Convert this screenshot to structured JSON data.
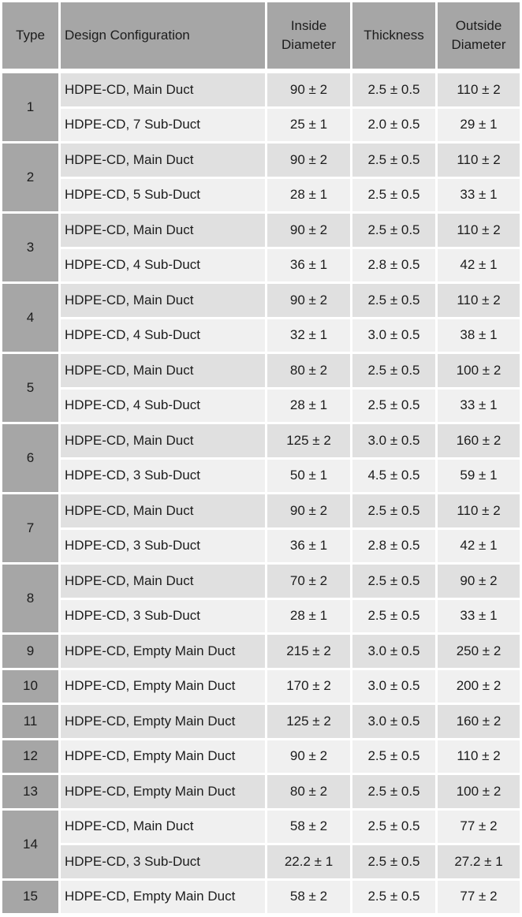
{
  "colors": {
    "header_bg": "#a6a6a6",
    "type_bg": "#a6a6a6",
    "row_dark": "#e0e0e0",
    "row_light": "#f0f0f0"
  },
  "headers": [
    "Type",
    "Design Configuration",
    "Inside Diameter",
    "Thickness",
    "Outside Diameter"
  ],
  "groups": [
    {
      "type": "1",
      "rows": [
        [
          "HDPE-CD, Main Duct",
          "90 ± 2",
          "2.5 ± 0.5",
          "110 ± 2"
        ],
        [
          "HDPE-CD, 7 Sub-Duct",
          "25 ± 1",
          "2.0 ± 0.5",
          "29 ± 1"
        ]
      ]
    },
    {
      "type": "2",
      "rows": [
        [
          "HDPE-CD, Main Duct",
          "90 ± 2",
          "2.5 ± 0.5",
          "110 ± 2"
        ],
        [
          "HDPE-CD, 5 Sub-Duct",
          "28 ± 1",
          "2.5 ± 0.5",
          "33 ± 1"
        ]
      ]
    },
    {
      "type": "3",
      "rows": [
        [
          "HDPE-CD, Main Duct",
          "90 ± 2",
          "2.5 ± 0.5",
          "110 ± 2"
        ],
        [
          "HDPE-CD, 4 Sub-Duct",
          "36 ± 1",
          "2.8 ± 0.5",
          "42 ± 1"
        ]
      ]
    },
    {
      "type": "4",
      "rows": [
        [
          "HDPE-CD, Main Duct",
          "90 ± 2",
          "2.5 ± 0.5",
          "110 ± 2"
        ],
        [
          "HDPE-CD, 4 Sub-Duct",
          "32 ± 1",
          "3.0 ± 0.5",
          "38 ± 1"
        ]
      ]
    },
    {
      "type": "5",
      "rows": [
        [
          "HDPE-CD, Main Duct",
          "80 ± 2",
          "2.5 ± 0.5",
          "100 ± 2"
        ],
        [
          "HDPE-CD, 4 Sub-Duct",
          "28 ± 1",
          "2.5 ± 0.5",
          "33 ± 1"
        ]
      ]
    },
    {
      "type": "6",
      "rows": [
        [
          "HDPE-CD, Main Duct",
          "125 ± 2",
          "3.0 ± 0.5",
          "160 ± 2"
        ],
        [
          "HDPE-CD, 3 Sub-Duct",
          "50 ± 1",
          "4.5 ± 0.5",
          "59 ± 1"
        ]
      ]
    },
    {
      "type": "7",
      "rows": [
        [
          "HDPE-CD, Main Duct",
          "90 ± 2",
          "2.5 ± 0.5",
          "110 ± 2"
        ],
        [
          "HDPE-CD, 3 Sub-Duct",
          "36 ± 1",
          "2.8 ± 0.5",
          "42 ± 1"
        ]
      ]
    },
    {
      "type": "8",
      "rows": [
        [
          "HDPE-CD, Main Duct",
          "70 ± 2",
          "2.5 ± 0.5",
          "90 ± 2"
        ],
        [
          "HDPE-CD, 3 Sub-Duct",
          "28 ± 1",
          "2.5 ± 0.5",
          "33 ± 1"
        ]
      ]
    },
    {
      "type": "9",
      "rows": [
        [
          "HDPE-CD, Empty Main Duct",
          "215 ± 2",
          "3.0 ± 0.5",
          "250 ± 2"
        ]
      ]
    },
    {
      "type": "10",
      "rows": [
        [
          "HDPE-CD, Empty Main Duct",
          "170 ± 2",
          "3.0 ± 0.5",
          "200 ± 2"
        ]
      ]
    },
    {
      "type": "11",
      "rows": [
        [
          "HDPE-CD, Empty Main Duct",
          "125 ± 2",
          "3.0 ± 0.5",
          "160 ± 2"
        ]
      ]
    },
    {
      "type": "12",
      "rows": [
        [
          "HDPE-CD, Empty Main Duct",
          "90 ± 2",
          "2.5 ± 0.5",
          "110 ± 2"
        ]
      ]
    },
    {
      "type": "13",
      "rows": [
        [
          "HDPE-CD, Empty Main Duct",
          "80 ± 2",
          "2.5 ± 0.5",
          "100 ± 2"
        ]
      ]
    },
    {
      "type": "14",
      "rows": [
        [
          "HDPE-CD, Main Duct",
          "58 ± 2",
          "2.5 ± 0.5",
          "77 ± 2"
        ],
        [
          "HDPE-CD, 3 Sub-Duct",
          "22.2 ± 1",
          "2.5 ± 0.5",
          "27.2 ± 1"
        ]
      ]
    },
    {
      "type": "15",
      "rows": [
        [
          "HDPE-CD, Empty Main Duct",
          "58 ± 2",
          "2.5 ± 0.5",
          "77 ± 2"
        ]
      ]
    }
  ]
}
